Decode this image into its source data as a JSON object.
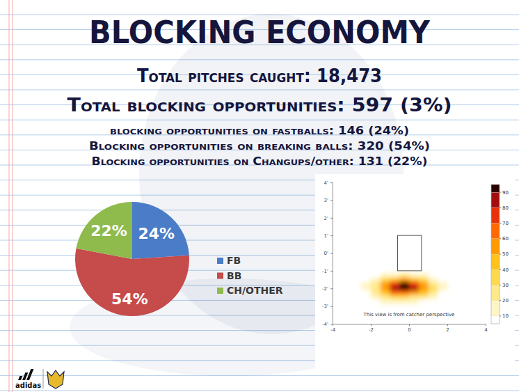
{
  "page": {
    "title": "BLOCKING ECONOMY",
    "lines": [
      "Total pitches caught: 18,473",
      "Total blocking opportunities: 597 (3%)",
      "blocking opportunities on fastballs: 146 (24%)",
      "Blocking opportunities on breaking balls: 320 (54%)",
      "Blocking opportunities on Changups/other: 131 (22%)"
    ],
    "logo": "adidas"
  },
  "chart_data": [
    {
      "type": "pie",
      "categories": [
        "FB",
        "BB",
        "CH/OTHER"
      ],
      "values": [
        24,
        54,
        22
      ],
      "value_labels": [
        "24%",
        "54%",
        "22%"
      ],
      "colors": [
        "#4a7cc7",
        "#c64b4b",
        "#8fbb4d"
      ],
      "data_labels": true,
      "legend": "right"
    },
    {
      "type": "heatmap",
      "annotation": "This view is from catcher perspective",
      "x": [
        -2.25,
        -1.75,
        -1.25,
        -0.75,
        -0.25,
        0.25,
        0.75,
        1.25,
        1.75
      ],
      "y": [
        -1.25,
        -1.5,
        -1.75,
        -2.0,
        -2.25,
        -2.5,
        -2.75
      ],
      "cells": [
        [
          0,
          5,
          12,
          18,
          22,
          18,
          12,
          5,
          0
        ],
        [
          5,
          15,
          30,
          45,
          52,
          45,
          30,
          15,
          5
        ],
        [
          10,
          25,
          50,
          78,
          92,
          78,
          50,
          28,
          10
        ],
        [
          10,
          28,
          55,
          85,
          95,
          80,
          52,
          30,
          12
        ],
        [
          8,
          22,
          42,
          62,
          68,
          58,
          40,
          22,
          8
        ],
        [
          5,
          12,
          22,
          30,
          32,
          28,
          20,
          12,
          5
        ],
        [
          0,
          5,
          10,
          12,
          14,
          12,
          8,
          5,
          0
        ]
      ],
      "strike_zone": {
        "x": [
          -0.6,
          0.65
        ],
        "y": [
          -1,
          1
        ]
      },
      "xlim": [
        -4,
        4
      ],
      "xticks": [
        -4,
        -2,
        0,
        2,
        4
      ],
      "ylim": [
        -4,
        4
      ],
      "yticks": [
        {
          "value": 4,
          "label": "4'"
        },
        {
          "value": 3,
          "label": "3'"
        },
        {
          "value": 2,
          "label": "2'"
        },
        {
          "value": 1,
          "label": "1'"
        },
        {
          "value": 0,
          "label": "0'"
        },
        {
          "value": -1,
          "label": "-1'"
        },
        {
          "value": -2,
          "label": "-2'"
        },
        {
          "value": -3,
          "label": "-3'"
        },
        {
          "value": -4,
          "label": "-4'"
        }
      ],
      "color_range": [
        5,
        95
      ],
      "color_ticks": [
        10,
        20,
        30,
        40,
        50,
        60,
        70,
        80,
        90
      ],
      "colors": [
        "#ffffff",
        "#fff5c4",
        "#ffe98a",
        "#ffd94d",
        "#ffc21a",
        "#ff9a00",
        "#ff6a00",
        "#e8330a",
        "#a30d0d",
        "#2a0000"
      ]
    }
  ]
}
